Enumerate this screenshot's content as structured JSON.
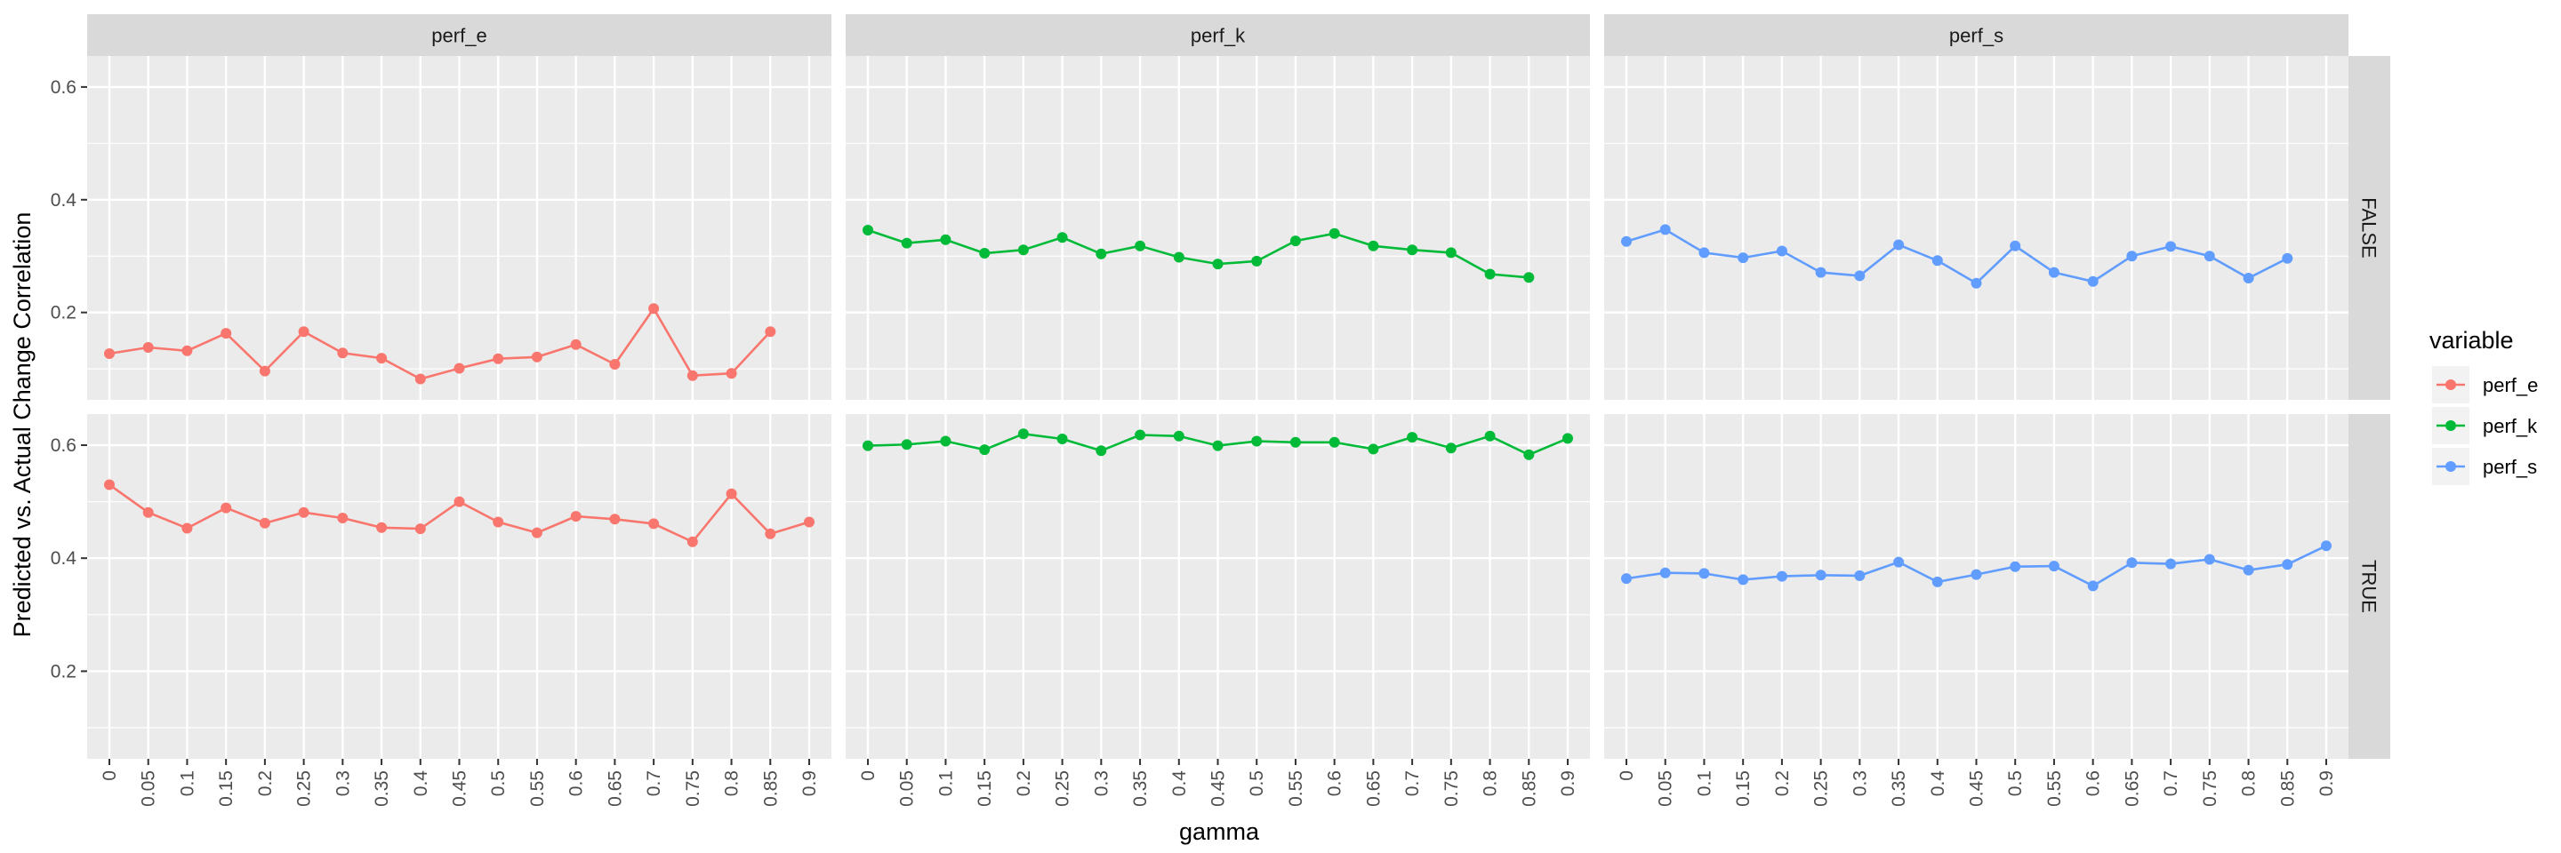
{
  "chart_data": {
    "type": "line",
    "xlabel": "gamma",
    "ylabel": "Predicted vs. Actual Change Correlation",
    "x": [
      "0",
      "0.05",
      "0.1",
      "0.15",
      "0.2",
      "0.25",
      "0.3",
      "0.35",
      "0.4",
      "0.45",
      "0.5",
      "0.55",
      "0.6",
      "0.65",
      "0.7",
      "0.75",
      "0.8",
      "0.85",
      "0.9"
    ],
    "ylim": [
      0.045,
      0.655
    ],
    "yticks": [
      "0.2",
      "0.4",
      "0.6"
    ],
    "grid": true,
    "facet_columns": [
      "perf_e",
      "perf_k",
      "perf_s"
    ],
    "facet_rows": [
      "FALSE",
      "TRUE"
    ],
    "colors": {
      "perf_e": "#F8766D",
      "perf_k": "#00BA38",
      "perf_s": "#619CFF"
    },
    "legend": {
      "title": "variable",
      "entries": [
        "perf_e",
        "perf_k",
        "perf_s"
      ],
      "placement": "right"
    },
    "series": {
      "FALSE": {
        "perf_e": [
          0.127,
          0.138,
          0.132,
          0.163,
          0.096,
          0.166,
          0.128,
          0.119,
          0.082,
          0.101,
          0.118,
          0.121,
          0.143,
          0.108,
          0.207,
          0.088,
          0.092,
          0.166,
          null
        ],
        "perf_k": [
          0.346,
          0.323,
          0.329,
          0.305,
          0.311,
          0.333,
          0.304,
          0.318,
          0.298,
          0.286,
          0.291,
          0.327,
          0.34,
          0.318,
          0.311,
          0.306,
          0.268,
          0.262,
          null
        ],
        "perf_s": [
          0.326,
          0.347,
          0.306,
          0.297,
          0.309,
          0.271,
          0.265,
          0.32,
          0.292,
          0.252,
          0.318,
          0.271,
          0.255,
          0.3,
          0.317,
          0.3,
          0.261,
          0.296,
          null
        ]
      },
      "TRUE": {
        "perf_e": [
          0.53,
          0.481,
          0.453,
          0.489,
          0.462,
          0.481,
          0.471,
          0.454,
          0.452,
          0.5,
          0.464,
          0.445,
          0.474,
          0.469,
          0.461,
          0.429,
          0.514,
          0.443,
          0.464
        ],
        "perf_k": [
          0.599,
          0.601,
          0.607,
          0.592,
          0.62,
          0.611,
          0.59,
          0.618,
          0.616,
          0.599,
          0.607,
          0.605,
          0.605,
          0.593,
          0.614,
          0.595,
          0.616,
          0.583,
          0.612
        ],
        "perf_s": [
          0.364,
          0.374,
          0.373,
          0.362,
          0.368,
          0.37,
          0.369,
          0.393,
          0.358,
          0.371,
          0.385,
          0.386,
          0.351,
          0.392,
          0.39,
          0.398,
          0.379,
          0.389,
          0.422
        ]
      }
    }
  }
}
